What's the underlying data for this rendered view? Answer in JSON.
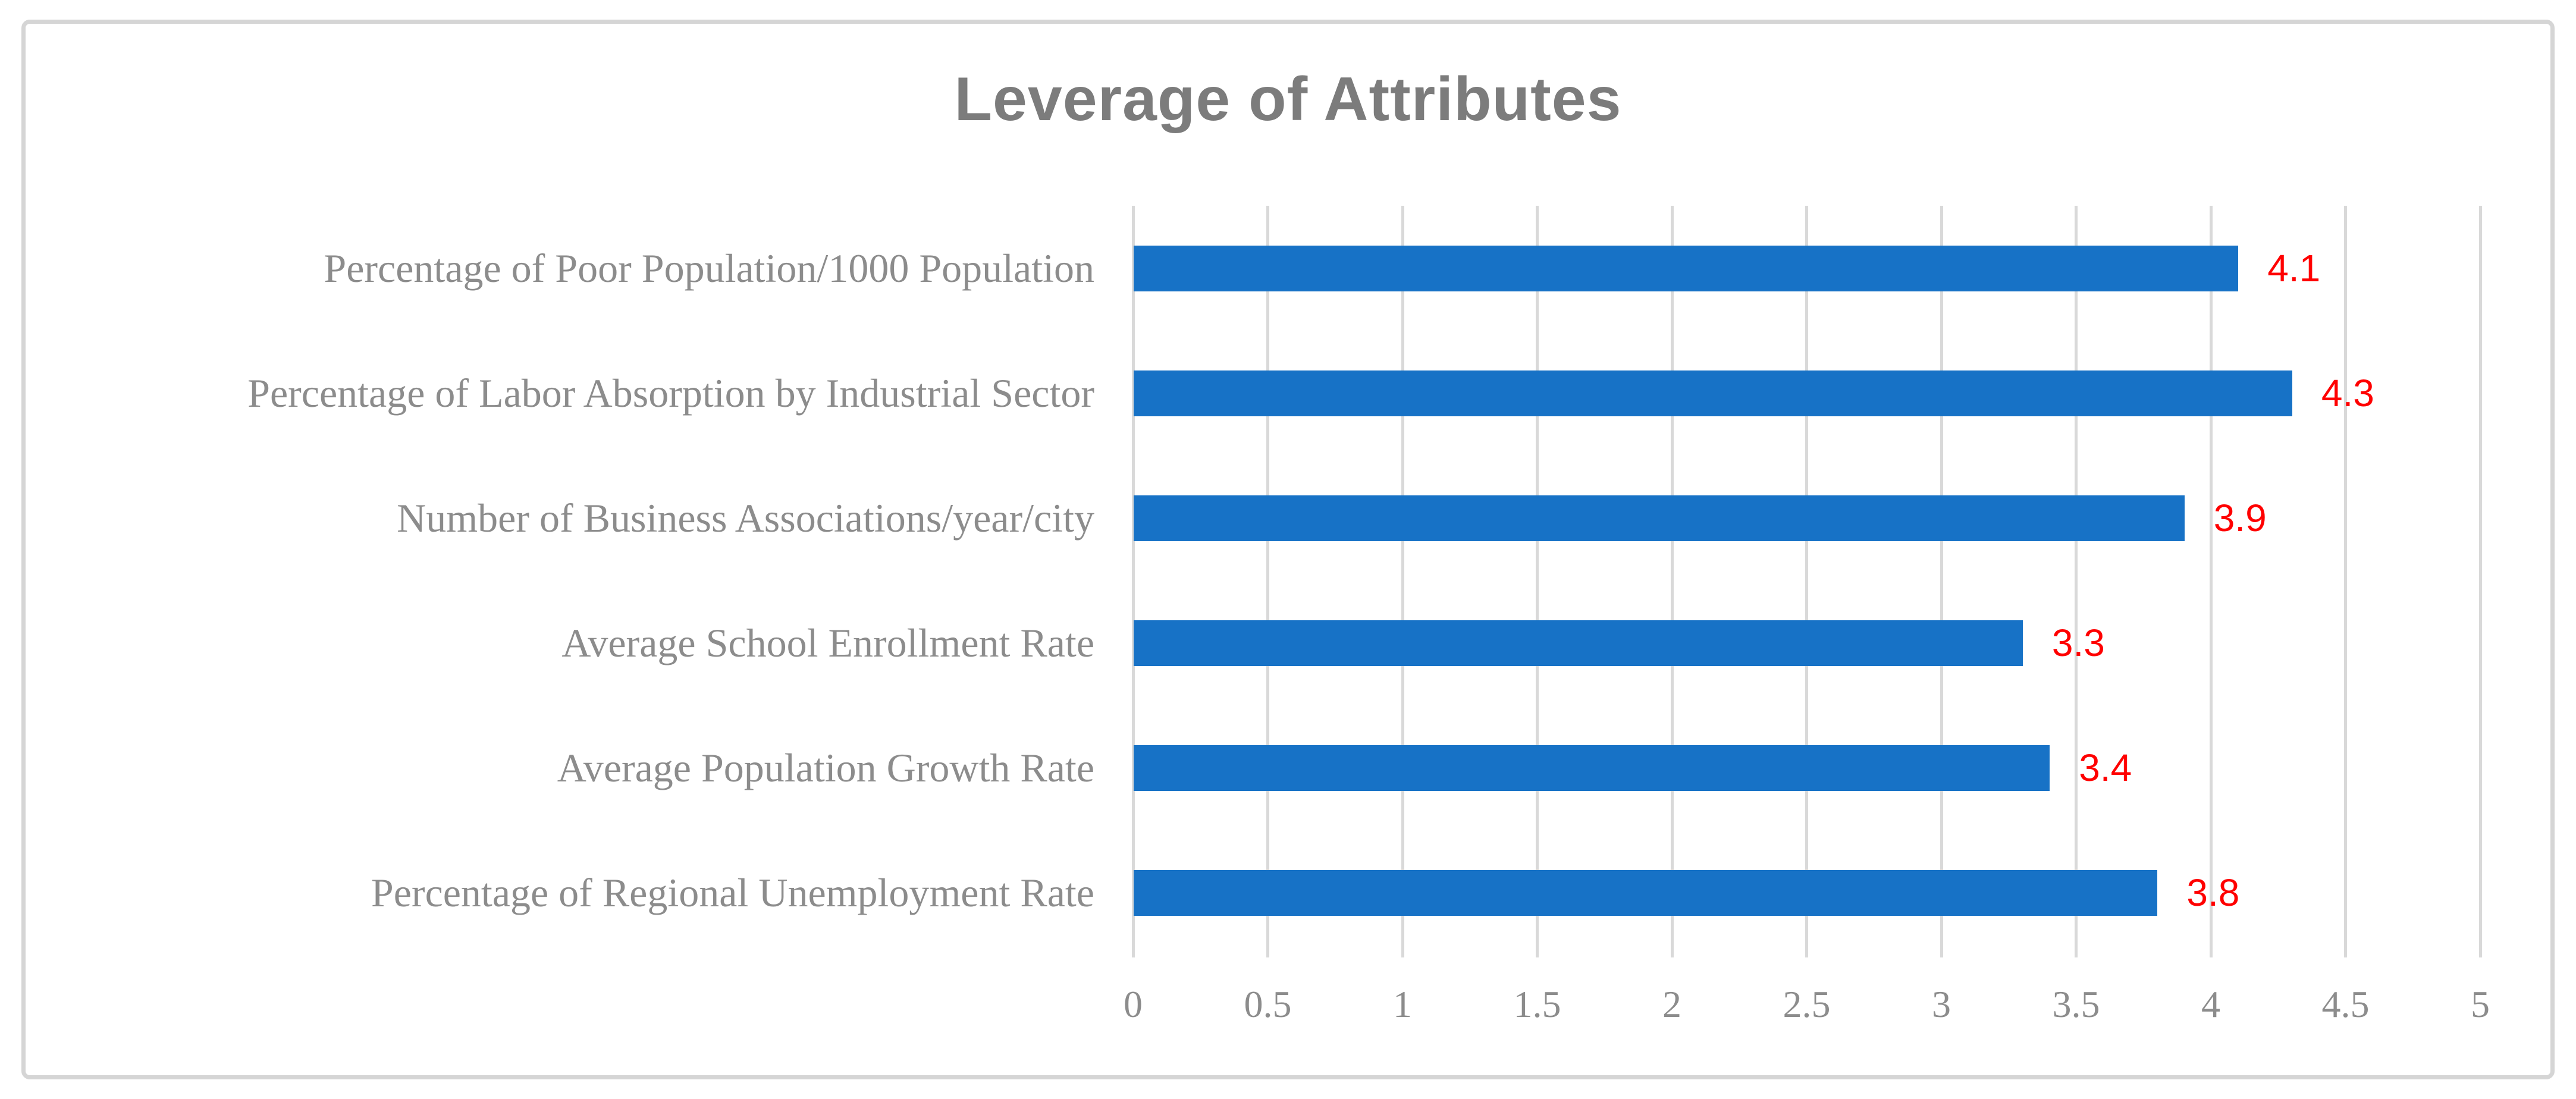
{
  "chart_data": {
    "type": "bar",
    "orientation": "horizontal",
    "title": "Leverage of Attributes",
    "categories": [
      "Percentage of Poor Population/1000 Population",
      "Percentage of Labor Absorption by Industrial Sector",
      "Number of Business Associations/year/city",
      "Average School Enrollment Rate",
      "Average Population Growth Rate",
      "Percentage of Regional Unemployment Rate"
    ],
    "values": [
      4.1,
      4.3,
      3.9,
      3.3,
      3.4,
      3.8
    ],
    "data_labels": [
      "4.1",
      "4.3",
      "3.9",
      "3.3",
      "3.4",
      "3.8"
    ],
    "x_ticks": [
      "0",
      "0.5",
      "1",
      "1.5",
      "2",
      "2.5",
      "3",
      "3.5",
      "4",
      "4.5",
      "5"
    ],
    "xlim": [
      0,
      5
    ],
    "xlabel": "",
    "ylabel": "",
    "grid": true,
    "legend": "none",
    "bar_color": "#1772C6",
    "value_label_color": "#FF0000",
    "title_color": "#7C7C7C",
    "axis_text_color": "#8C8C8C",
    "gridline_color": "#D9D9D9",
    "frame_border_color": "#D5D5D5"
  }
}
